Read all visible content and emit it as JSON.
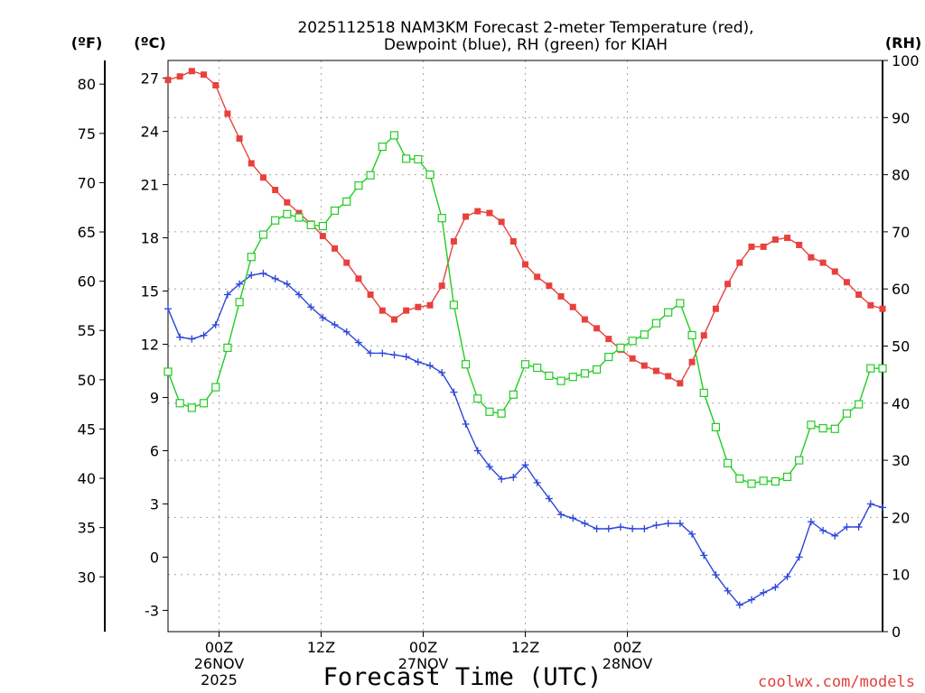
{
  "chart_data": {
    "type": "line",
    "title_line1": "2025112518 NAM3KM Forecast 2-meter Temperature (red),",
    "title_line2": "Dewpoint (blue), RH (green) for KIAH",
    "xlabel": "Forecast Time (UTC)",
    "credit": "coolwx.com/models",
    "units": {
      "fahrenheit": "(ºF)",
      "celsius": "(ºC)",
      "rh": "(RH)"
    },
    "x_hours_from_start": [
      0,
      84
    ],
    "x_ticks": [
      {
        "hour": 6,
        "lines": [
          "00Z",
          "26NOV",
          "2025"
        ]
      },
      {
        "hour": 18,
        "lines": [
          "12Z"
        ]
      },
      {
        "hour": 30,
        "lines": [
          "00Z",
          "27NOV"
        ]
      },
      {
        "hour": 42,
        "lines": [
          "12Z"
        ]
      },
      {
        "hour": 54,
        "lines": [
          "00Z",
          "28NOV"
        ]
      }
    ],
    "celsius_axis": {
      "ylim": [
        -4.2,
        28.0
      ],
      "ticks": [
        "-3",
        "0",
        "3",
        "6",
        "9",
        "12",
        "15",
        "18",
        "21",
        "24",
        "27"
      ]
    },
    "fahrenheit_axis": {
      "ticks": [
        "30",
        "35",
        "40",
        "45",
        "50",
        "55",
        "60",
        "65",
        "70",
        "75",
        "80"
      ]
    },
    "rh_axis": {
      "ylim": [
        0,
        100
      ],
      "ticks": [
        "0",
        "10",
        "20",
        "30",
        "40",
        "50",
        "60",
        "70",
        "80",
        "90",
        "100"
      ]
    },
    "series": [
      {
        "name": "Temperature",
        "axis": "celsius",
        "color": "#e8413d",
        "marker": "filled-square",
        "values": [
          26.9,
          27.1,
          27.4,
          27.2,
          26.6,
          25.0,
          23.6,
          22.2,
          21.4,
          20.7,
          20.0,
          19.4,
          18.8,
          18.1,
          17.4,
          16.6,
          15.7,
          14.8,
          13.9,
          13.4,
          13.9,
          14.1,
          14.2,
          15.3,
          17.8,
          19.2,
          19.5,
          19.4,
          18.9,
          17.8,
          16.5,
          15.8,
          15.3,
          14.7,
          14.1,
          13.4,
          12.9,
          12.3,
          11.7,
          11.2,
          10.8,
          10.5,
          10.2,
          9.8,
          11.0,
          12.5,
          14.0,
          15.4,
          16.6,
          17.5,
          17.5,
          17.9,
          18.0,
          17.6,
          16.9,
          16.6,
          16.1,
          15.5,
          14.8,
          14.2,
          14.0
        ]
      },
      {
        "name": "Dewpoint",
        "axis": "celsius",
        "color": "#2c46d8",
        "marker": "plus",
        "values": [
          14.0,
          12.4,
          12.3,
          12.5,
          13.1,
          14.8,
          15.4,
          15.9,
          16.0,
          15.7,
          15.4,
          14.8,
          14.1,
          13.5,
          13.1,
          12.7,
          12.1,
          11.5,
          11.5,
          11.4,
          11.3,
          11.0,
          10.8,
          10.4,
          9.3,
          7.5,
          6.0,
          5.1,
          4.4,
          4.5,
          5.2,
          4.2,
          3.3,
          2.4,
          2.2,
          1.9,
          1.6,
          1.6,
          1.7,
          1.6,
          1.6,
          1.8,
          1.9,
          1.9,
          1.3,
          0.1,
          -1.0,
          -1.9,
          -2.7,
          -2.4,
          -2.0,
          -1.7,
          -1.1,
          0.0,
          2.0,
          1.5,
          1.2,
          1.7,
          1.7,
          3.0,
          2.8
        ]
      },
      {
        "name": "RH",
        "axis": "rh",
        "color": "#22cc22",
        "marker": "open-square",
        "values": [
          45.5,
          40.0,
          39.2,
          40.0,
          42.8,
          49.7,
          57.7,
          65.6,
          69.5,
          72.0,
          73.1,
          72.5,
          71.2,
          71.0,
          73.7,
          75.3,
          78.1,
          79.9,
          84.9,
          86.9,
          82.8,
          82.7,
          80.0,
          72.4,
          57.2,
          46.8,
          40.8,
          38.5,
          38.2,
          41.5,
          46.8,
          46.2,
          44.8,
          43.9,
          44.6,
          45.2,
          45.9,
          48.1,
          49.7,
          50.9,
          52.0,
          54.0,
          55.9,
          57.5,
          51.9,
          41.8,
          35.8,
          29.5,
          26.8,
          25.9,
          26.4,
          26.3,
          27.1,
          30.0,
          36.2,
          35.6,
          35.5,
          38.2,
          39.8,
          46.1,
          46.1
        ]
      }
    ]
  }
}
